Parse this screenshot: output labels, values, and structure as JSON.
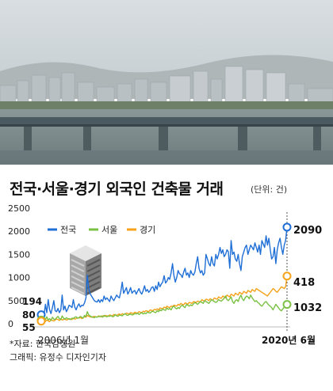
{
  "title": "전국·서울·경기 외국인 건축물 거래",
  "unit": "(단위: 건)",
  "source": "*자료: 한국감정원",
  "credit": "그래픽: 유정수 디자인기자",
  "chart_data": {
    "type": "line",
    "title": "전국·서울·경기 외국인 건축물 거래",
    "ylim": [
      0,
      2500
    ],
    "yticks": [
      "2500",
      "2000",
      "1500",
      "1000",
      "500",
      "0"
    ],
    "x_start_label": "2006년 1월",
    "x_end_label": "2020년 6월",
    "legend_position": "top-left",
    "series": [
      {
        "name": "전국",
        "color": "#1f6fd6",
        "start_label": "194",
        "end_label": "2090",
        "values": [
          194,
          260,
          180,
          420,
          240,
          520,
          300,
          220,
          350,
          500,
          280,
          260,
          330,
          240,
          300,
          620,
          300,
          380,
          260,
          320,
          400,
          380,
          350,
          520,
          360,
          300,
          380,
          430,
          360,
          400,
          390,
          450,
          560,
          1050,
          760,
          650,
          600,
          550,
          500,
          480,
          470,
          520,
          460,
          520,
          480,
          600,
          520,
          560,
          520,
          480,
          600,
          540,
          500,
          560,
          620,
          580,
          560,
          700,
          900,
          660,
          720,
          780,
          640,
          700,
          780,
          660,
          700,
          720,
          640,
          700,
          760,
          680,
          640,
          720,
          820,
          700,
          740,
          680,
          720,
          780,
          800,
          700,
          820,
          740,
          900,
          800,
          860,
          900,
          1040,
          880,
          920,
          1000,
          960,
          1100,
          1300,
          1050,
          900,
          1000,
          1150,
          1080,
          1060,
          1000,
          1120,
          1200,
          1050,
          1100,
          1000,
          1150,
          1080,
          1050,
          1120,
          1300,
          1450,
          1200,
          1100,
          1150,
          1050,
          1100,
          1500,
          1400,
          1300,
          1250,
          1450,
          1300,
          1250,
          1500,
          1400,
          1500,
          1650,
          1520,
          1600,
          1450,
          1500,
          1600,
          1560,
          1200,
          1800,
          1500,
          1550,
          1400,
          1350,
          1500,
          1300,
          1150,
          1450,
          1550,
          1650,
          1700,
          1500,
          1600,
          1700,
          1650,
          1600,
          1750,
          1650,
          1550,
          1700,
          1500,
          1800,
          1720,
          1650,
          1900,
          1700,
          1850,
          1600,
          1400,
          1450,
          1650,
          1300,
          1600,
          1750,
          1850,
          1650,
          1500,
          1700,
          1800,
          2090
        ]
      },
      {
        "name": "서울",
        "color": "#7ac143",
        "start_label": "80",
        "end_label": "418",
        "values": [
          80,
          60,
          120,
          90,
          150,
          80,
          110,
          70,
          140,
          100,
          90,
          130,
          160,
          110,
          90,
          170,
          120,
          100,
          130,
          110,
          100,
          90,
          120,
          110,
          140,
          150,
          120,
          130,
          160,
          140,
          120,
          180,
          150,
          260,
          190,
          170,
          150,
          140,
          130,
          150,
          140,
          160,
          150,
          170,
          140,
          180,
          160,
          150,
          170,
          160,
          180,
          150,
          160,
          200,
          170,
          160,
          190,
          180,
          170,
          200,
          220,
          190,
          180,
          200,
          210,
          190,
          200,
          220,
          210,
          230,
          200,
          220,
          240,
          210,
          230,
          220,
          250,
          240,
          230,
          260,
          270,
          250,
          240,
          280,
          260,
          300,
          280,
          320,
          300,
          290,
          340,
          310,
          330,
          300,
          360,
          380,
          340,
          320,
          350,
          330,
          380,
          400,
          370,
          350,
          420,
          400,
          380,
          410,
          390,
          430,
          460,
          440,
          420,
          450,
          480,
          460,
          440,
          500,
          480,
          460,
          440,
          480,
          520,
          500,
          480,
          460,
          480,
          520,
          500,
          490,
          520,
          550,
          600,
          520,
          500,
          540,
          580,
          480,
          440,
          500,
          520,
          480,
          560,
          620,
          540,
          500,
          560,
          600,
          580,
          540,
          620,
          560,
          520,
          480,
          500,
          460,
          440,
          400,
          380,
          420,
          460,
          480,
          440,
          400,
          380,
          350,
          300,
          360,
          420,
          380,
          340,
          300,
          280,
          320,
          360,
          400,
          418
        ]
      },
      {
        "name": "경기",
        "color": "#f7a21b",
        "start_label": "55",
        "end_label": "1032",
        "values": [
          55,
          40,
          70,
          50,
          80,
          60,
          45,
          90,
          70,
          60,
          80,
          100,
          90,
          70,
          110,
          80,
          90,
          100,
          80,
          90,
          110,
          100,
          90,
          120,
          100,
          110,
          130,
          120,
          140,
          110,
          130,
          150,
          140,
          180,
          160,
          150,
          140,
          150,
          160,
          150,
          140,
          170,
          160,
          150,
          170,
          160,
          180,
          170,
          160,
          190,
          180,
          170,
          200,
          190,
          180,
          200,
          210,
          190,
          220,
          200,
          210,
          230,
          220,
          210,
          240,
          230,
          220,
          250,
          240,
          230,
          260,
          250,
          240,
          270,
          260,
          280,
          270,
          260,
          300,
          290,
          280,
          310,
          300,
          320,
          300,
          340,
          330,
          320,
          360,
          340,
          380,
          360,
          350,
          380,
          370,
          400,
          390,
          380,
          420,
          400,
          440,
          420,
          410,
          450,
          440,
          420,
          460,
          450,
          440,
          480,
          470,
          460,
          490,
          480,
          470,
          520,
          500,
          490,
          530,
          520,
          500,
          540,
          520,
          510,
          560,
          540,
          530,
          580,
          560,
          550,
          600,
          580,
          560,
          620,
          600,
          580,
          640,
          620,
          600,
          660,
          640,
          620,
          680,
          660,
          640,
          700,
          680,
          660,
          720,
          700,
          680,
          740,
          720,
          700,
          760,
          740,
          720,
          700,
          680,
          660,
          640,
          620,
          600,
          640,
          680,
          720,
          760,
          740,
          700,
          680,
          720,
          760,
          800,
          780,
          760,
          800,
          1032
        ]
      }
    ]
  }
}
